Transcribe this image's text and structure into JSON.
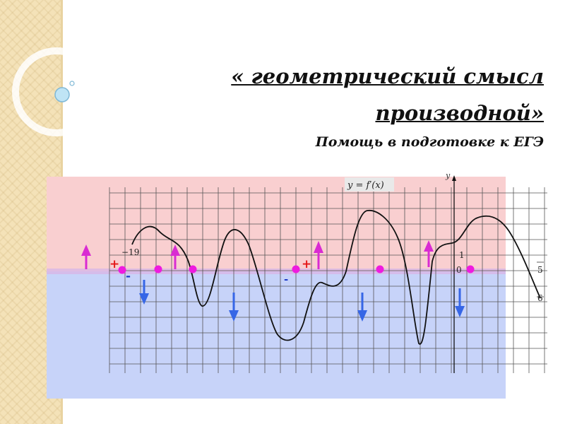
{
  "slide": {
    "title": "« геометрический смысл производной»",
    "subtitle": "Помощь в подготовке к ЕГЭ"
  },
  "graph": {
    "function_label": "y = f′(x)",
    "y_axis_label": "y",
    "x_label_left": "−19",
    "x_label_one": "1",
    "x_label_zero": "0",
    "x_label_right_top": "5",
    "x_label_right_bottom": "6",
    "plus_sign": "+",
    "minus_sign": "-",
    "colors": {
      "positive_region": "#f9cfd0",
      "negative_region": "#c7d3f9",
      "up_arrow": "#d92bd2",
      "down_arrow": "#3666e6",
      "dot": "#ee1bdf",
      "plus": "#e41616",
      "minus": "#1a38c8",
      "curve": "#111111",
      "grid": "#555555"
    }
  }
}
